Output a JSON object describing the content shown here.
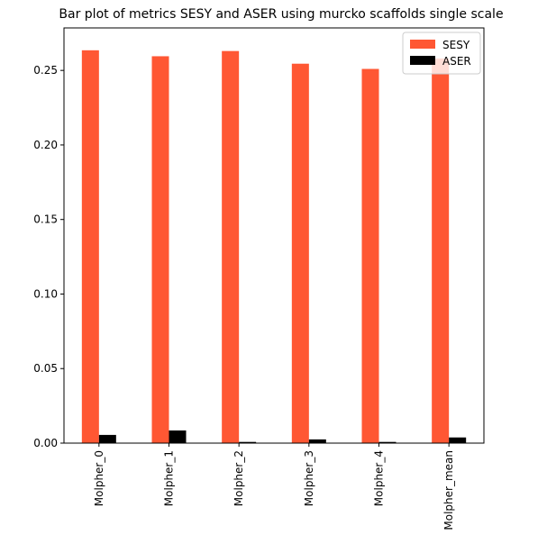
{
  "chart_data": {
    "type": "bar",
    "title": "Bar plot of metrics SESY and ASER using murcko scaffolds single scale",
    "xlabel": "",
    "ylabel": "",
    "categories": [
      "Molpher_0",
      "Molpher_1",
      "Molpher_2",
      "Molpher_3",
      "Molpher_4",
      "Molpher_mean"
    ],
    "series": [
      {
        "name": "SESY",
        "color": "#ff5733",
        "values": [
          0.2635,
          0.2595,
          0.263,
          0.2545,
          0.251,
          0.258
        ]
      },
      {
        "name": "ASER",
        "color": "#000000",
        "values": [
          0.0055,
          0.0085,
          0.0008,
          0.0025,
          0.0008,
          0.0038
        ]
      }
    ],
    "ylim": [
      0,
      0.2785
    ],
    "yticks": [
      0.0,
      0.05,
      0.1,
      0.15,
      0.2,
      0.25
    ],
    "ytick_labels": [
      "0.00",
      "0.05",
      "0.10",
      "0.15",
      "0.20",
      "0.25"
    ],
    "grid": false,
    "legend_position": "top-right"
  }
}
